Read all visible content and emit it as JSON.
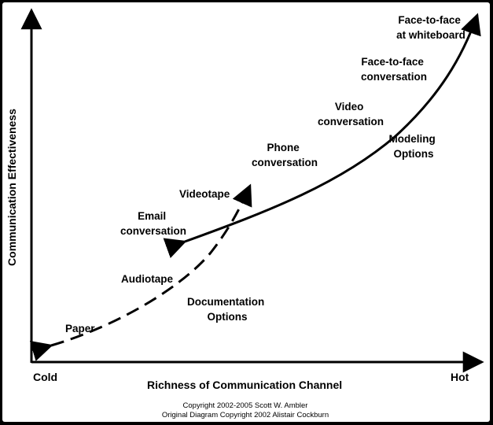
{
  "axes": {
    "y_title": "Communication Effectiveness",
    "x_title": "Richness of Communication Channel",
    "x_min_label": "Cold",
    "x_max_label": "Hot"
  },
  "modeling_options": {
    "label": [
      "Modeling",
      "Options"
    ],
    "items": [
      {
        "lines": [
          "Face-to-face",
          "at whiteboard"
        ]
      },
      {
        "lines": [
          "Face-to-face",
          "conversation"
        ]
      },
      {
        "lines": [
          "Video",
          "conversation"
        ]
      },
      {
        "lines": [
          "Phone",
          "conversation"
        ]
      },
      {
        "lines": [
          "Email",
          "conversation"
        ]
      }
    ]
  },
  "documentation_options": {
    "label": [
      "Documentation",
      "Options"
    ],
    "items": [
      {
        "lines": [
          "Videotape"
        ]
      },
      {
        "lines": [
          "Audiotape"
        ]
      },
      {
        "lines": [
          "Paper"
        ]
      }
    ]
  },
  "copyright": [
    "Copyright 2002-2005 Scott W. Ambler",
    "Original Diagram Copyright 2002 Alistair Cockburn"
  ]
}
